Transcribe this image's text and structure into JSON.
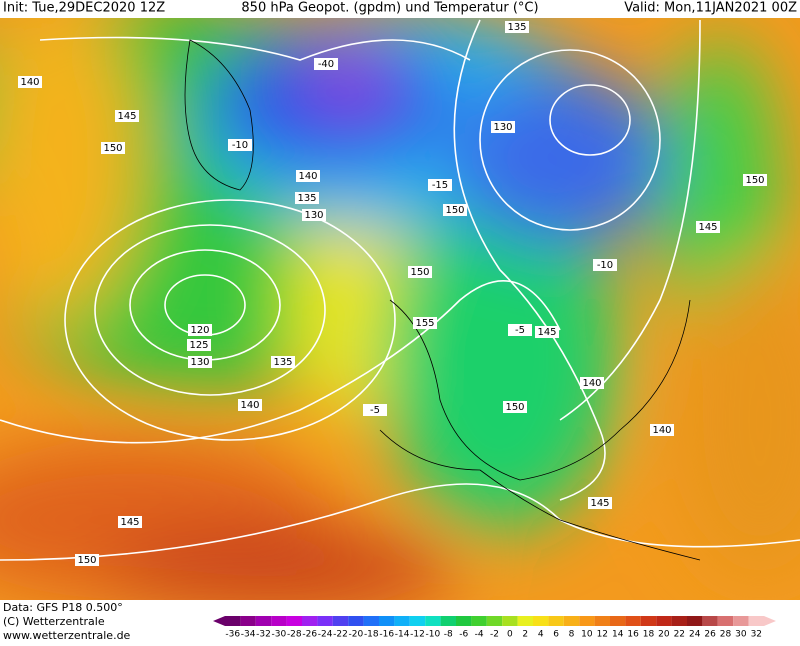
{
  "header": {
    "init": "Init: Tue,29DEC2020 12Z",
    "title": "850 hPa Geopot. (gpdm) und Temperatur (°C)",
    "valid": "Valid: Mon,11JAN2021 00Z"
  },
  "footer": {
    "data": "Data: GFS P18 0.500°",
    "copyright": "(C) Wetterzentrale",
    "url": "www.wetterzentrale.de"
  },
  "contour_labels": [
    140,
    145,
    150,
    140,
    135,
    130,
    120,
    125,
    130,
    135,
    140,
    150,
    155,
    150,
    145,
    140,
    150,
    140,
    145,
    135,
    130,
    150,
    145,
    150,
    145,
    -40,
    -10,
    -15,
    -5,
    -5,
    -10
  ],
  "colorbar": [
    -36,
    -34,
    -32,
    -30,
    -28,
    -26,
    -24,
    -22,
    -20,
    -18,
    -16,
    -14,
    -12,
    -10,
    -8,
    -6,
    -4,
    -2,
    0,
    2,
    4,
    6,
    8,
    10,
    12,
    14,
    16,
    18,
    20,
    22,
    24,
    26,
    28,
    30,
    32
  ]
}
